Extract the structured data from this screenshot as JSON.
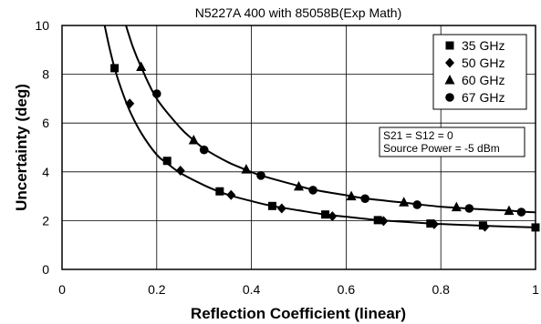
{
  "chart_data": {
    "type": "line",
    "title": "N5227A 400 with 85058B(Exp Math)",
    "xlabel": "Reflection Coefficient (linear)",
    "ylabel": "Uncertainty (deg)",
    "xlim": [
      0,
      1
    ],
    "ylim": [
      0,
      10
    ],
    "xticks": [
      "0",
      "0.2",
      "0.4",
      "0.6",
      "0.8",
      "1"
    ],
    "yticks": [
      "0",
      "2",
      "4",
      "6",
      "8",
      "10"
    ],
    "grid": true,
    "legend_position": "top-right",
    "annotation": [
      "S21 = S12 = 0",
      "Source Power = -5 dBm"
    ],
    "series": [
      {
        "name": "35 GHz",
        "marker": "square",
        "curve": "lower",
        "x": [
          0.111,
          0.222,
          0.333,
          0.444,
          0.556,
          0.667,
          0.778,
          0.889,
          1.0
        ],
        "values": [
          8.25,
          4.45,
          3.2,
          2.6,
          2.25,
          2.02,
          1.88,
          1.8,
          1.72
        ]
      },
      {
        "name": "50 GHz",
        "marker": "diamond",
        "curve": "lower",
        "x": [
          0.143,
          0.25,
          0.357,
          0.464,
          0.571,
          0.679,
          0.786,
          0.893
        ],
        "values": [
          6.8,
          4.05,
          3.05,
          2.5,
          2.18,
          1.98,
          1.85,
          1.75
        ]
      },
      {
        "name": "60 GHz",
        "marker": "triangle",
        "curve": "upper",
        "x": [
          0.167,
          0.278,
          0.389,
          0.5,
          0.611,
          0.722,
          0.833,
          0.944
        ],
        "values": [
          8.3,
          5.3,
          4.1,
          3.4,
          3.0,
          2.75,
          2.55,
          2.4
        ]
      },
      {
        "name": "67 GHz",
        "marker": "circle",
        "curve": "upper",
        "x": [
          0.2,
          0.3,
          0.42,
          0.53,
          0.64,
          0.75,
          0.86,
          0.97
        ],
        "values": [
          7.2,
          4.9,
          3.85,
          3.25,
          2.9,
          2.65,
          2.5,
          2.35
        ]
      }
    ],
    "curves": {
      "lower": {
        "x": [
          0.09,
          0.1,
          0.111,
          0.125,
          0.143,
          0.167,
          0.2,
          0.222,
          0.25,
          0.3,
          0.333,
          0.357,
          0.4,
          0.444,
          0.5,
          0.556,
          0.6,
          0.667,
          0.7,
          0.778,
          0.8,
          0.889,
          0.9,
          1.0
        ],
        "values": [
          10.0,
          9.1,
          8.25,
          7.4,
          6.5,
          5.6,
          4.7,
          4.35,
          3.95,
          3.45,
          3.18,
          3.02,
          2.8,
          2.6,
          2.42,
          2.25,
          2.16,
          2.02,
          1.98,
          1.88,
          1.86,
          1.79,
          1.78,
          1.72
        ]
      },
      "upper": {
        "x": [
          0.135,
          0.15,
          0.167,
          0.2,
          0.25,
          0.278,
          0.3,
          0.35,
          0.389,
          0.42,
          0.5,
          0.53,
          0.6,
          0.611,
          0.64,
          0.7,
          0.722,
          0.75,
          0.8,
          0.833,
          0.86,
          0.9,
          0.944,
          0.97,
          1.0
        ],
        "values": [
          10.0,
          9.1,
          8.3,
          7.0,
          5.8,
          5.3,
          4.95,
          4.4,
          4.08,
          3.85,
          3.42,
          3.27,
          3.04,
          3.0,
          2.91,
          2.78,
          2.74,
          2.67,
          2.57,
          2.53,
          2.49,
          2.45,
          2.41,
          2.37,
          2.34
        ]
      }
    }
  }
}
